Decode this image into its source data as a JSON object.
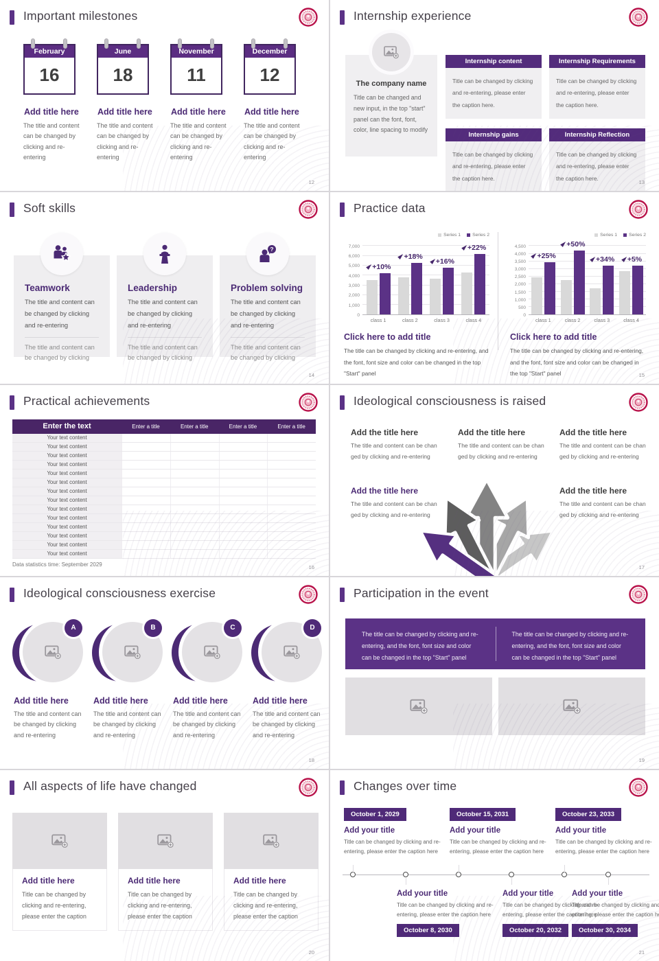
{
  "theme": {
    "purple_dark": "#4b2a74",
    "purple": "#5b3286",
    "table_header_purple": "#492566",
    "series1_gray": "#d9d9d9",
    "series2_purple": "#5b3286",
    "seal_red": "#b8124a",
    "card_gray": "#efeef0"
  },
  "logo": {
    "icon": "school-seal-logo"
  },
  "slides": {
    "milestones": {
      "title": "Important milestones",
      "page": "12",
      "items": [
        {
          "month": "February",
          "day": "16",
          "heading": "Add title here",
          "caption": "The title and content can be changed by clicking and re-entering"
        },
        {
          "month": "June",
          "day": "18",
          "heading": "Add title here",
          "caption": "The title and content can be changed by clicking and re-entering"
        },
        {
          "month": "November",
          "day": "11",
          "heading": "Add title here",
          "caption": "The title and content can be changed by clicking and re-entering"
        },
        {
          "month": "December",
          "day": "12",
          "heading": "Add title here",
          "caption": "The title and content can be changed by clicking and re-entering"
        }
      ]
    },
    "internship": {
      "title": "Internship experience",
      "page": "13",
      "company": {
        "icon": "image-placeholder-icon",
        "name": "The company name",
        "caption": "Title can be changed and new input, in the top \"start\" panel can the font, font, color, line spacing to modify"
      },
      "boxes": [
        {
          "heading": "Internship content",
          "caption": "Title can be changed by clicking and re-entering, please enter the caption here."
        },
        {
          "heading": "Internship Requirements",
          "caption": "Title can be changed by clicking and re-entering, please enter the caption here."
        },
        {
          "heading": "Internship gains",
          "caption": "Title can be changed by clicking and re-entering, please enter the caption here."
        },
        {
          "heading": "Internship Reflection",
          "caption": "Title can be changed by clicking and re-entering, please enter the caption here."
        }
      ]
    },
    "soft_skills": {
      "title": "Soft skills",
      "page": "14",
      "cards": [
        {
          "icon": "teamwork",
          "icon_name": "teamwork-icon",
          "heading": "Teamwork",
          "caption1": "The title and content can be changed by clicking and re-entering",
          "caption2": "The title and content can be changed by clicking"
        },
        {
          "icon": "leadership",
          "icon_name": "leadership-icon",
          "heading": "Leadership",
          "caption1": "The title and content can be changed by clicking and re-entering",
          "caption2": "The title and content can be changed by clicking"
        },
        {
          "icon": "problem",
          "icon_name": "problem-solving-icon",
          "heading": "Problem solving",
          "caption1": "The title and content can be changed by clicking and re-entering",
          "caption2": "The title and content can be changed by clicking"
        }
      ]
    },
    "practice_data": {
      "title": "Practice data",
      "page": "15",
      "panels": [
        {
          "heading": "Click here to add title",
          "caption": "The title can be changed by clicking and re-entering, and the font, font size and color can be changed in the top \"Start\" panel"
        },
        {
          "heading": "Click here to add title",
          "caption": "The title can be changed by clicking and re-entering, and the font, font size and color can be changed in the top \"Start\" panel"
        }
      ]
    },
    "practical_achievements": {
      "title": "Practical achievements",
      "page": "16",
      "table": {
        "header_first": "Enter the text",
        "header_other": [
          "Enter a title",
          "Enter a title",
          "Enter a title",
          "Enter a title"
        ],
        "rows": [
          "Your text content",
          "Your text content",
          "Your text content",
          "Your text content",
          "Your text content",
          "Your text content",
          "Your text content",
          "Your text content",
          "Your text content",
          "Your text content",
          "Your text content",
          "Your text content",
          "Your text content",
          "Your text content"
        ]
      },
      "footnote": "Data statistics time: September 2029"
    },
    "ideology_raised": {
      "title": "Ideological consciousness is raised",
      "page": "17",
      "blocks": [
        {
          "heading": "Add the title here",
          "caption": "The title and content can be chan ged by clicking and re-entering",
          "emphasis": false
        },
        {
          "heading": "Add the title here",
          "caption": "The title and content can be chan ged by clicking and re-entering",
          "emphasis": false
        },
        {
          "heading": "Add the title here",
          "caption": "The title and content can be chan ged by clicking and re-entering",
          "emphasis": false
        },
        {
          "heading": "Add the title here",
          "caption": "The title and content can be chan ged by clicking and re-entering",
          "emphasis": true
        },
        {
          "heading": "Add the title here",
          "caption": "The title and content can be chan ged by clicking and re-entering",
          "emphasis": false
        }
      ],
      "graphic": "diverging-road-arrows"
    },
    "ideology_exercise": {
      "title": "Ideological consciousness exercise",
      "page": "18",
      "items": [
        {
          "letter": "A",
          "heading": "Add title here",
          "caption": "The title and content can be changed by clicking and re-entering"
        },
        {
          "letter": "B",
          "heading": "Add title here",
          "caption": "The title and content can be changed by clicking and re-entering"
        },
        {
          "letter": "C",
          "heading": "Add title here",
          "caption": "The title and content can be changed by clicking and re-entering"
        },
        {
          "letter": "D",
          "heading": "Add title here",
          "caption": "The title and content can be changed by clicking and re-entering"
        }
      ]
    },
    "participation": {
      "title": "Participation in the event",
      "page": "19",
      "banner_left": "The title can be changed by clicking and re-entering, and the font, font size and color can be changed in the top \"Start\" panel",
      "banner_right": "The title can be changed by clicking and re-entering, and the font, font size and color can be changed in the top \"Start\" panel"
    },
    "life_changed": {
      "title": "All aspects of life have changed",
      "page": "20",
      "cards": [
        {
          "heading": "Add title here",
          "caption": "Title can be changed by clicking and re-entering, please enter the caption"
        },
        {
          "heading": "Add title here",
          "caption": "Title can be changed by clicking and re-entering, please enter the caption"
        },
        {
          "heading": "Add title here",
          "caption": "Title can be changed by clicking and re-entering, please enter the caption"
        }
      ]
    },
    "changes_over_time": {
      "title": "Changes over time",
      "page": "21",
      "events": [
        {
          "date": "October 1, 2029",
          "heading": "Add your title",
          "caption": "Title can be changed by clicking and re-entering, please enter the caption here",
          "position": "top"
        },
        {
          "date": "October 8, 2030",
          "heading": "Add your title",
          "caption": "Title can be changed by clicking and re-entering, please enter the caption here",
          "position": "bottom"
        },
        {
          "date": "October 15, 2031",
          "heading": "Add your title",
          "caption": "Title can be changed by clicking and re-entering, please enter the caption here",
          "position": "top"
        },
        {
          "date": "October 20, 2032",
          "heading": "Add your title",
          "caption": "Title can be changed by clicking and re-entering, please enter the caption here",
          "position": "bottom"
        },
        {
          "date": "October 23, 2033",
          "heading": "Add your title",
          "caption": "Title can be changed by clicking and re-entering, please enter the caption here",
          "position": "top"
        },
        {
          "date": "October 30, 2034",
          "heading": "Add your title",
          "caption": "Title can be changed by clicking and re-entering, please enter the caption here",
          "position": "bottom"
        }
      ]
    }
  },
  "chart_data": [
    {
      "type": "bar",
      "categories": [
        "class 1",
        "class 2",
        "class 3",
        "class 4"
      ],
      "series": [
        {
          "name": "Series 1",
          "color": "#d9d9d9",
          "values": [
            3500,
            3800,
            3650,
            4300
          ]
        },
        {
          "name": "Series 2",
          "color": "#5b3286",
          "values": [
            4200,
            5300,
            4800,
            6200
          ]
        }
      ],
      "growth_labels": [
        "+10%",
        "+18%",
        "+16%",
        "+22%"
      ],
      "ylim": [
        0,
        7000
      ],
      "ytick_step": 1000,
      "xlabel": "",
      "ylabel": "",
      "grid": true,
      "legend_position": "top-right"
    },
    {
      "type": "bar",
      "categories": [
        "class 1",
        "class 2",
        "class 3",
        "class 4"
      ],
      "series": [
        {
          "name": "Series 1",
          "color": "#d9d9d9",
          "values": [
            2450,
            2250,
            1750,
            2850
          ]
        },
        {
          "name": "Series 2",
          "color": "#5b3286",
          "values": [
            3450,
            4200,
            3200,
            3200
          ]
        }
      ],
      "growth_labels": [
        "+25%",
        "+50%",
        "+34%",
        "+5%"
      ],
      "ylim": [
        0,
        4500
      ],
      "ytick_step": 500,
      "xlabel": "",
      "ylabel": "",
      "grid": true,
      "legend_position": "top-right"
    }
  ]
}
